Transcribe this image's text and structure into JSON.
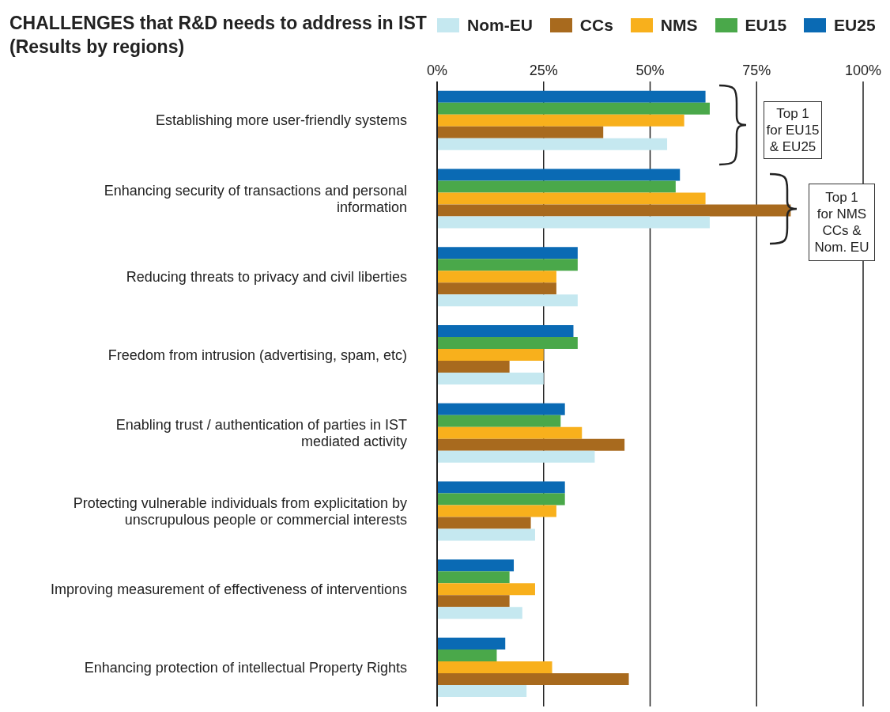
{
  "chart_data": {
    "type": "bar",
    "orientation": "horizontal",
    "title": "CHALLENGES that R&D needs to address in IST",
    "subtitle": "(Results by regions)",
    "categories": [
      "Establishing more user-friendly systems",
      "Enhancing security of transactions and personal information",
      "Reducing threats to privacy and civil liberties",
      "Freedom from intrusion (advertising, spam, etc)",
      "Enabling trust / authentication of parties in IST mediated activity",
      "Protecting vulnerable individuals from explicitation by unscrupulous people or commercial interests",
      "Improving measurement of effectiveness of interventions",
      "Enhancing protection of intellectual Property Rights"
    ],
    "series": [
      {
        "name": "Nom-EU",
        "color": "#c5e8f0",
        "values": [
          54,
          64,
          33,
          25,
          37,
          23,
          20,
          21
        ]
      },
      {
        "name": "CCs",
        "color": "#a86a1e",
        "values": [
          39,
          83,
          28,
          17,
          44,
          22,
          17,
          45
        ]
      },
      {
        "name": "NMS",
        "color": "#f8b01c",
        "values": [
          58,
          63,
          28,
          25,
          34,
          28,
          23,
          27
        ]
      },
      {
        "name": "EU15",
        "color": "#4aa84a",
        "values": [
          64,
          56,
          33,
          33,
          29,
          30,
          17,
          14
        ]
      },
      {
        "name": "EU25",
        "color": "#0a6ab4",
        "values": [
          63,
          57,
          33,
          32,
          30,
          30,
          18,
          16
        ]
      }
    ],
    "xlim": [
      0,
      100
    ],
    "xticks": [
      {
        "value": 0,
        "label": "0%"
      },
      {
        "value": 25,
        "label": "25%"
      },
      {
        "value": 50,
        "label": "50%"
      },
      {
        "value": 75,
        "label": "75%"
      },
      {
        "value": 100,
        "label": "100%"
      }
    ],
    "grid": "x",
    "legend": "top",
    "annotations": [
      "Top 1\nfor EU15\n& EU25",
      "Top 1\nfor NMS\nCCs &\nNom. EU"
    ]
  }
}
